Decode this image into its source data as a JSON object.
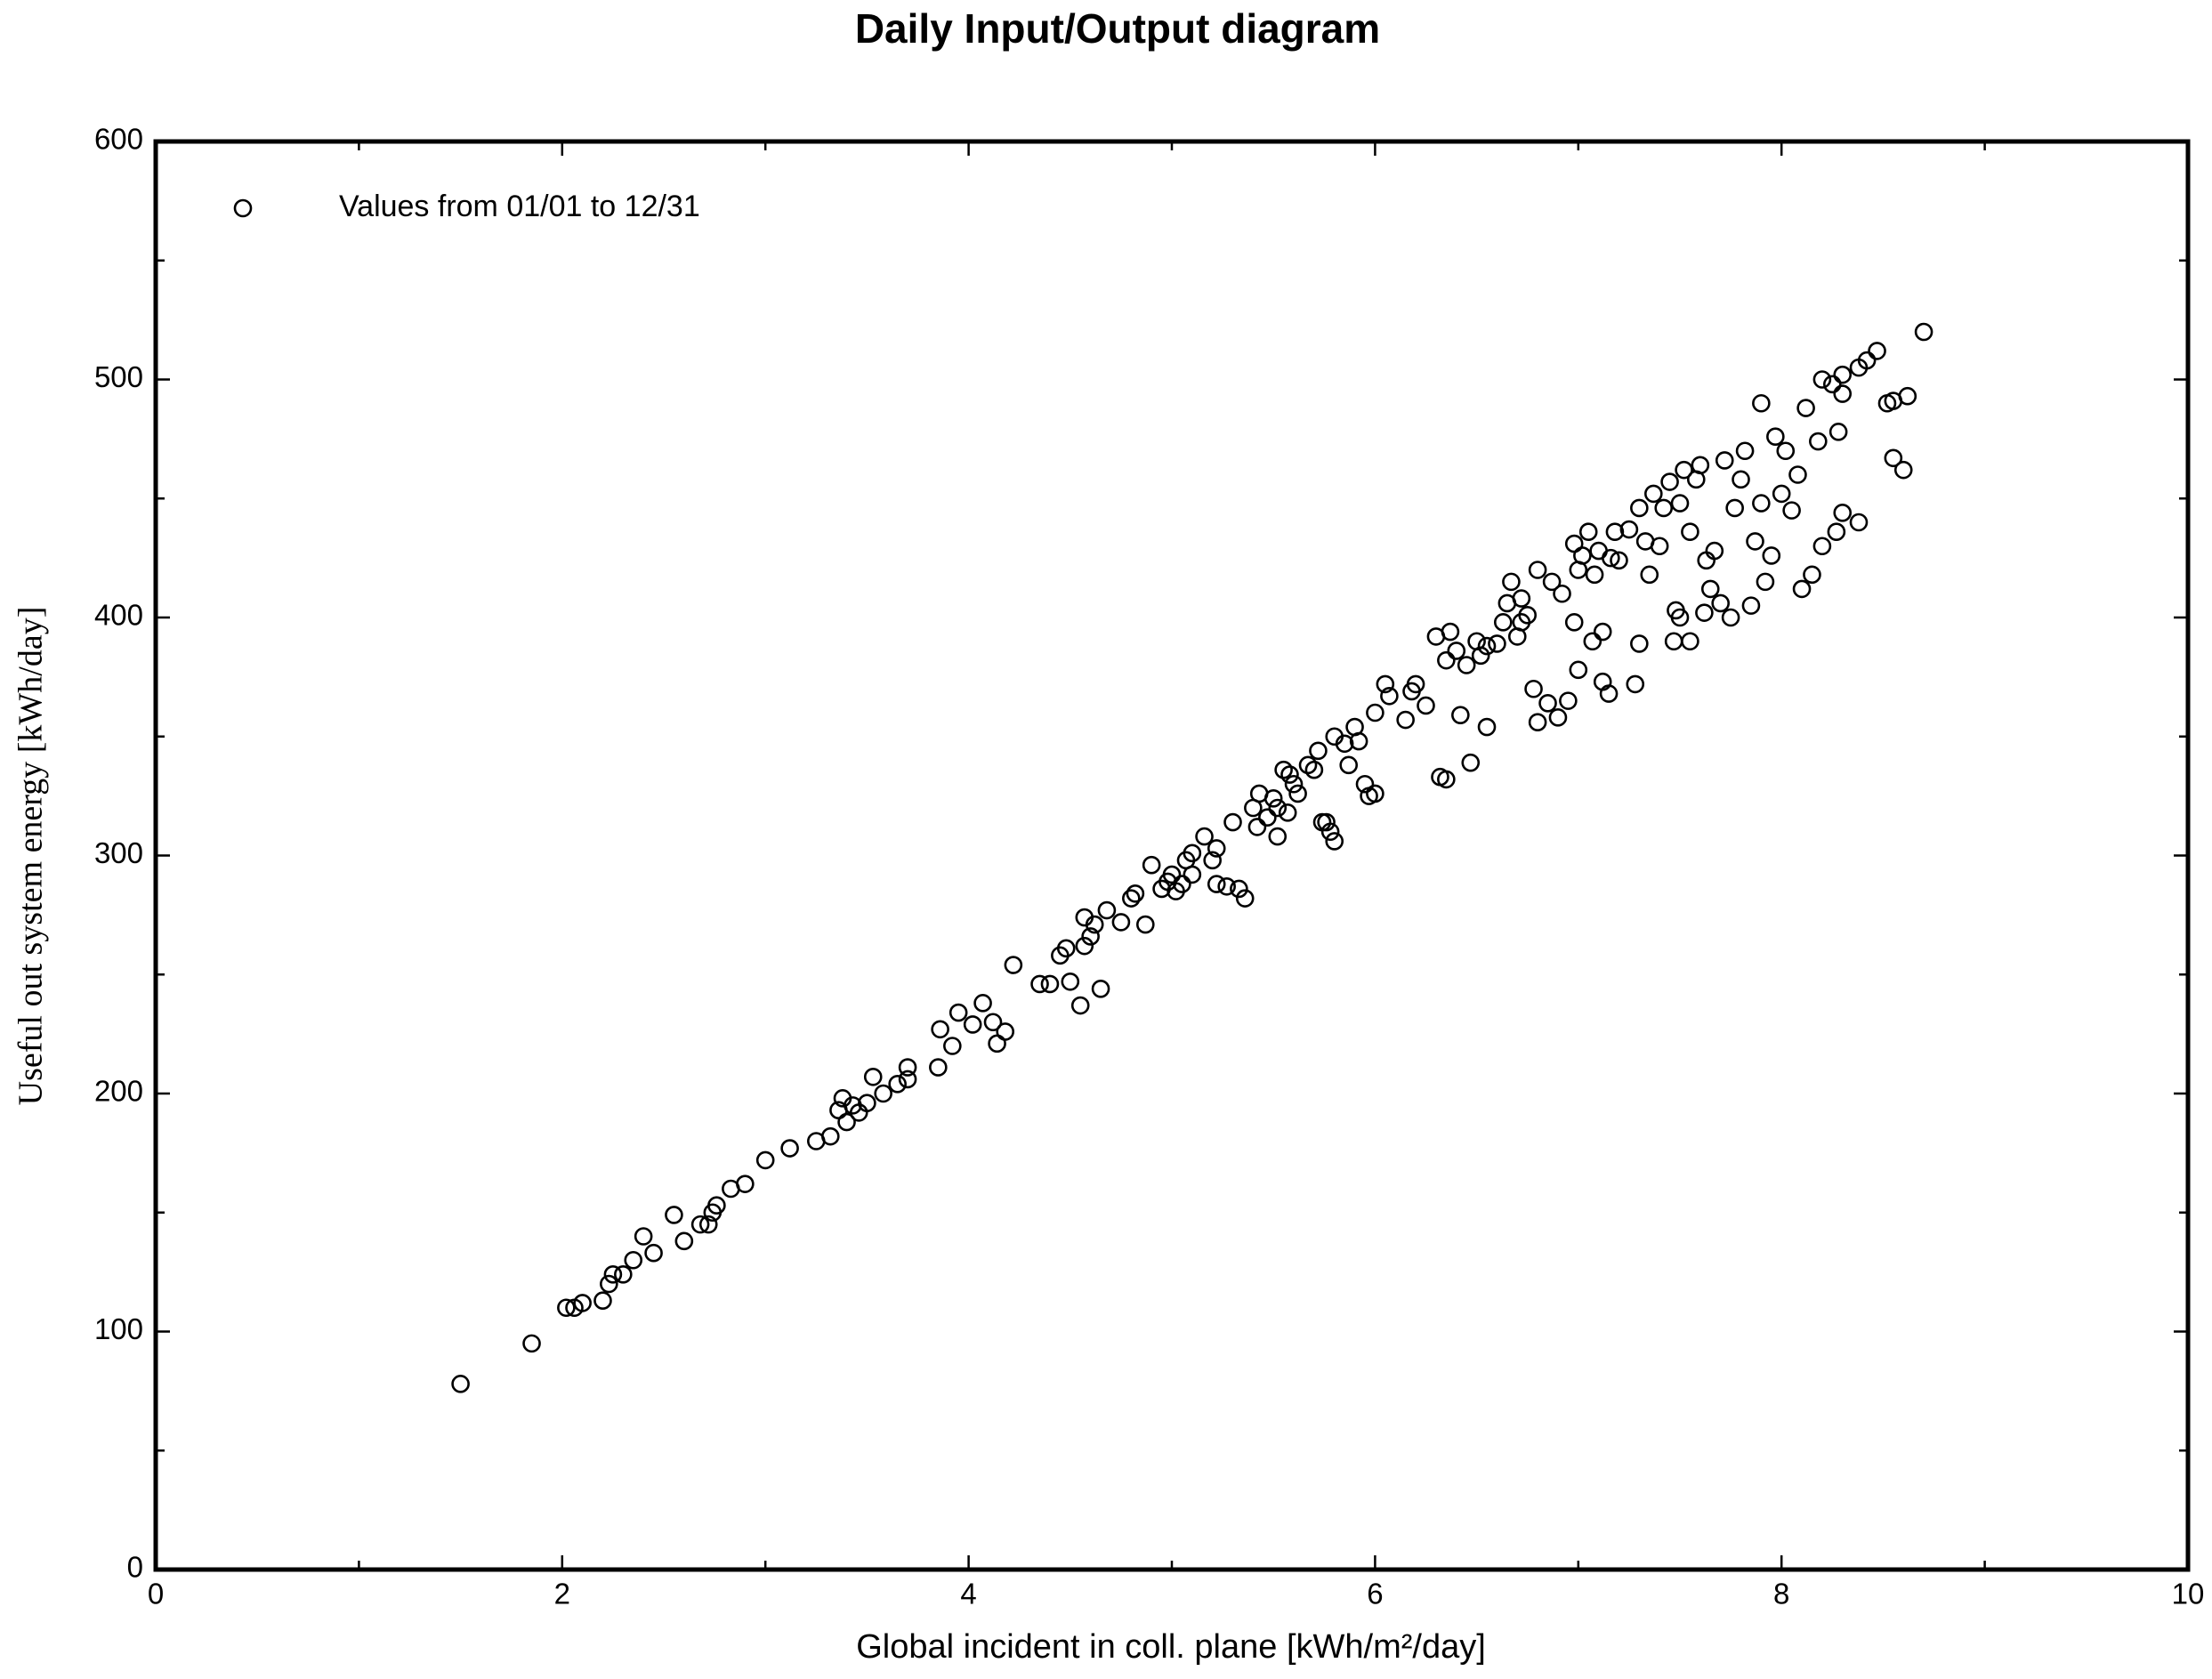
{
  "chart_data": {
    "type": "scatter",
    "title": "Daily Input/Output diagram",
    "xlabel": "Global incident in coll. plane [kWh/m²/day]",
    "ylabel": "Useful out system energy [kWh/day]",
    "xlim": [
      0,
      10
    ],
    "xticks": [
      0,
      2,
      4,
      6,
      8,
      10
    ],
    "ylim": [
      0,
      600
    ],
    "yticks": [
      0,
      100,
      200,
      300,
      400,
      500,
      600
    ],
    "legend": "upper left",
    "x": [
      1.5,
      1.85,
      2.02,
      2.06,
      2.1,
      2.2,
      2.23,
      2.25,
      2.3,
      2.35,
      2.4,
      2.45,
      2.55,
      2.6,
      2.68,
      2.72,
      2.74,
      2.76,
      2.83,
      2.9,
      3.0,
      3.12,
      3.25,
      3.32,
      3.36,
      3.38,
      3.4,
      3.43,
      3.46,
      3.5,
      3.53,
      3.58,
      3.65,
      3.7,
      3.7,
      3.85,
      3.86,
      3.92,
      3.95,
      4.02,
      4.07,
      4.12,
      4.14,
      4.18,
      4.22,
      4.35,
      4.4,
      4.45,
      4.48,
      4.5,
      4.55,
      4.57,
      4.57,
      4.6,
      4.62,
      4.65,
      4.68,
      4.75,
      4.8,
      4.82,
      4.87,
      4.9,
      4.95,
      4.98,
      5.0,
      5.02,
      5.05,
      5.07,
      5.1,
      5.1,
      5.16,
      5.2,
      5.22,
      5.22,
      5.27,
      5.3,
      5.33,
      5.36,
      5.4,
      5.42,
      5.43,
      5.47,
      5.5,
      5.52,
      5.52,
      5.55,
      5.57,
      5.58,
      5.6,
      5.62,
      5.67,
      5.7,
      5.72,
      5.74,
      5.76,
      5.78,
      5.8,
      5.8,
      5.85,
      5.87,
      5.9,
      5.92,
      5.95,
      5.97,
      6.0,
      6.0,
      6.05,
      6.07,
      6.15,
      6.18,
      6.2,
      6.25,
      6.3,
      6.32,
      6.35,
      6.35,
      6.37,
      6.4,
      6.42,
      6.45,
      6.47,
      6.5,
      6.52,
      6.55,
      6.55,
      6.6,
      6.63,
      6.65,
      6.67,
      6.7,
      6.72,
      6.72,
      6.75,
      6.78,
      6.8,
      6.8,
      6.85,
      6.87,
      6.9,
      6.92,
      6.95,
      6.98,
      6.98,
      7.0,
      7.0,
      7.02,
      7.05,
      7.07,
      7.08,
      7.1,
      7.12,
      7.12,
      7.15,
      7.16,
      7.18,
      7.2,
      7.25,
      7.28,
      7.3,
      7.3,
      7.33,
      7.35,
      7.37,
      7.4,
      7.42,
      7.45,
      7.47,
      7.48,
      7.5,
      7.5,
      7.52,
      7.55,
      7.55,
      7.58,
      7.6,
      7.62,
      7.63,
      7.65,
      7.67,
      7.7,
      7.72,
      7.75,
      7.77,
      7.8,
      7.82,
      7.85,
      7.87,
      7.9,
      7.9,
      7.92,
      7.95,
      7.97,
      8.0,
      8.02,
      8.05,
      8.08,
      8.1,
      8.12,
      8.15,
      8.18,
      8.2,
      8.2,
      8.25,
      8.27,
      8.3,
      8.3,
      8.38,
      8.42,
      8.47,
      8.52,
      8.55,
      8.55,
      8.6,
      8.62,
      8.7,
      8.38,
      8.3,
      8.28
    ],
    "series": [
      {
        "name": "Values from 01/01 to 12/31",
        "color": "#000000",
        "values": [
          78,
          95,
          110,
          110,
          112,
          113,
          120,
          124,
          124,
          130,
          140,
          133,
          149,
          138,
          145,
          145,
          150,
          153,
          160,
          162,
          172,
          177,
          180,
          182,
          193,
          198,
          188,
          195,
          192,
          196,
          207,
          200,
          204,
          206,
          211,
          211,
          227,
          220,
          234,
          229,
          238,
          230,
          221,
          226,
          254,
          246,
          246,
          258,
          261,
          247,
          237,
          262,
          274,
          266,
          271,
          244,
          277,
          272,
          282,
          284,
          271,
          296,
          286,
          289,
          292,
          285,
          288,
          298,
          292,
          301,
          308,
          298,
          303,
          288,
          287,
          314,
          286,
          282,
          320,
          312,
          326,
          316,
          324,
          308,
          320,
          336,
          318,
          334,
          330,
          326,
          338,
          336,
          344,
          314,
          314,
          310,
          306,
          350,
          347,
          338,
          354,
          348,
          330,
          325,
          326,
          360,
          372,
          367,
          357,
          369,
          372,
          363,
          392,
          333,
          332,
          382,
          394,
          386,
          359,
          380,
          339,
          390,
          384,
          388,
          354,
          389,
          398,
          406,
          415,
          392,
          398,
          408,
          401,
          370,
          420,
          356,
          364,
          415,
          358,
          410,
          365,
          431,
          398,
          378,
          420,
          426,
          436,
          390,
          418,
          428,
          394,
          373,
          368,
          425,
          436,
          424,
          437,
          372,
          446,
          389,
          432,
          418,
          452,
          430,
          446,
          457,
          390,
          403,
          400,
          448,
          462,
          390,
          436,
          458,
          464,
          402,
          424,
          412,
          428,
          406,
          466,
          400,
          446,
          458,
          470,
          405,
          432,
          490,
          448,
          415,
          426,
          476,
          452,
          470,
          445,
          460,
          412,
          488,
          418,
          474,
          500,
          430,
          498,
          436,
          494,
          502,
          505,
          508,
          512,
          490,
          491,
          467,
          462,
          493,
          520,
          440,
          444,
          478
        ]
      }
    ]
  }
}
